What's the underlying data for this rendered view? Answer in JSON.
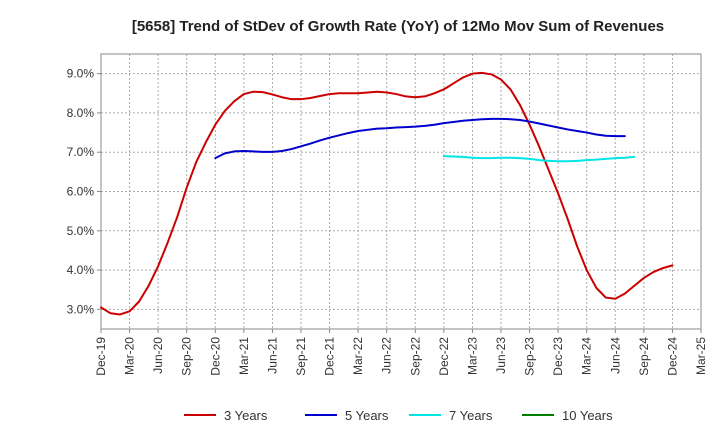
{
  "chart_data": {
    "type": "line",
    "title": "[5658]  Trend of StDev of Growth Rate (YoY) of 12Mo Mov Sum of Revenues",
    "xlabel": "",
    "ylabel": "",
    "ylim": [
      2.5,
      9.5
    ],
    "y_ticks": [
      3.0,
      4.0,
      5.0,
      6.0,
      7.0,
      8.0,
      9.0
    ],
    "y_tick_labels": [
      "3.0%",
      "4.0%",
      "5.0%",
      "6.0%",
      "7.0%",
      "8.0%",
      "9.0%"
    ],
    "x_tick_labels": [
      "Dec-19",
      "Mar-20",
      "Jun-20",
      "Sep-20",
      "Dec-20",
      "Mar-21",
      "Jun-21",
      "Sep-21",
      "Dec-21",
      "Mar-22",
      "Jun-22",
      "Sep-22",
      "Dec-22",
      "Mar-23",
      "Jun-23",
      "Sep-23",
      "Dec-23",
      "Mar-24",
      "Jun-24",
      "Sep-24",
      "Dec-24",
      "Mar-25"
    ],
    "grid": true,
    "legend_position": "bottom",
    "series": [
      {
        "name": "3 Years",
        "color": "#cc0000",
        "start_index": 0,
        "values": [
          3.05,
          2.9,
          2.87,
          2.95,
          3.2,
          3.6,
          4.1,
          4.7,
          5.35,
          6.1,
          6.75,
          7.25,
          7.7,
          8.05,
          8.3,
          8.48,
          8.54,
          8.53,
          8.47,
          8.4,
          8.35,
          8.35,
          8.38,
          8.43,
          8.48,
          8.5,
          8.5,
          8.5,
          8.52,
          8.54,
          8.52,
          8.48,
          8.42,
          8.4,
          8.42,
          8.5,
          8.6,
          8.75,
          8.9,
          9.0,
          9.02,
          8.98,
          8.85,
          8.6,
          8.2,
          7.7,
          7.15,
          6.55,
          5.95,
          5.3,
          4.6,
          4.0,
          3.55,
          3.3,
          3.27,
          3.4,
          3.6,
          3.8,
          3.95,
          4.05,
          4.12
        ]
      },
      {
        "name": "5 Years",
        "color": "#0000cc",
        "start_index": 12,
        "values": [
          6.85,
          6.97,
          7.02,
          7.03,
          7.02,
          7.01,
          7.01,
          7.03,
          7.08,
          7.15,
          7.22,
          7.3,
          7.37,
          7.43,
          7.49,
          7.54,
          7.57,
          7.6,
          7.61,
          7.63,
          7.64,
          7.65,
          7.67,
          7.7,
          7.74,
          7.77,
          7.8,
          7.82,
          7.84,
          7.85,
          7.85,
          7.84,
          7.82,
          7.78,
          7.73,
          7.68,
          7.63,
          7.58,
          7.54,
          7.5,
          7.45,
          7.42,
          7.41,
          7.41
        ]
      },
      {
        "name": "7 Years",
        "color": "#00e5e5",
        "start_index": 36,
        "values": [
          6.9,
          6.89,
          6.88,
          6.86,
          6.85,
          6.85,
          6.86,
          6.86,
          6.85,
          6.83,
          6.8,
          6.78,
          6.77,
          6.77,
          6.78,
          6.8,
          6.81,
          6.83,
          6.85,
          6.86,
          6.88
        ]
      },
      {
        "name": "10 Years",
        "color": "#008000",
        "start_index": 0,
        "values": []
      }
    ]
  }
}
